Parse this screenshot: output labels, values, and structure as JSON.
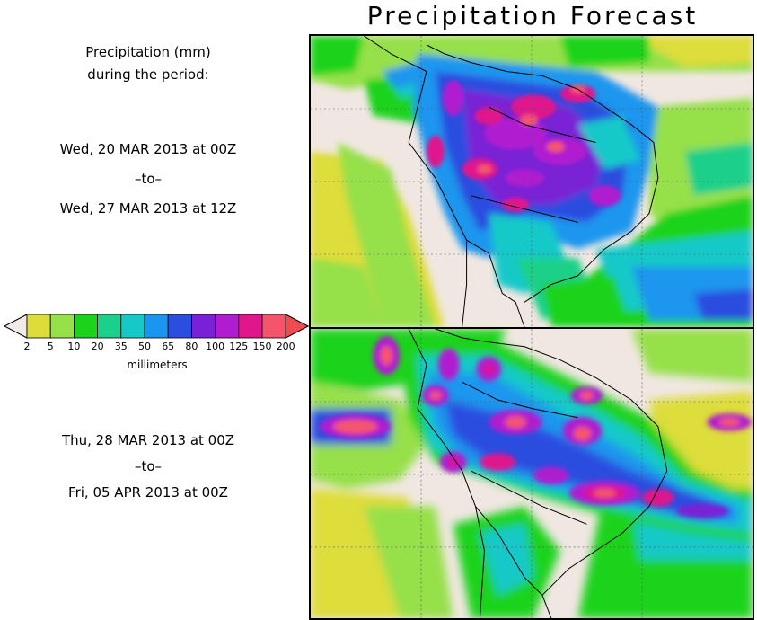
{
  "title": "Precipitation Forecast",
  "description_lines": [
    "Precipitation (mm)",
    "during the period:"
  ],
  "period1": {
    "start": "Wed, 20 MAR 2013 at 00Z",
    "separator": "–to–",
    "end": "Wed, 27 MAR 2013 at 12Z"
  },
  "period2": {
    "start": "Thu, 28 MAR 2013 at 00Z",
    "separator": "–to–",
    "end": "Fri, 05 APR 2013 at 00Z"
  },
  "colorbar": {
    "units": "millimeters",
    "ticks": [
      "2",
      "5",
      "10",
      "20",
      "35",
      "50",
      "65",
      "80",
      "100",
      "125",
      "150",
      "200"
    ],
    "colors": [
      "#dddd3a",
      "#96e048",
      "#1bd31b",
      "#1ad08a",
      "#16c9c9",
      "#1a96ee",
      "#2b4de0",
      "#7a20d6",
      "#b01dd0",
      "#e0168c",
      "#f5546d"
    ],
    "under_color": "#f0ebe8",
    "over_color": "#f24a52"
  },
  "map_colors": {
    "land": "#f1e7e2",
    "ocean_low": "#dddd3a",
    "coast": "#000000"
  }
}
